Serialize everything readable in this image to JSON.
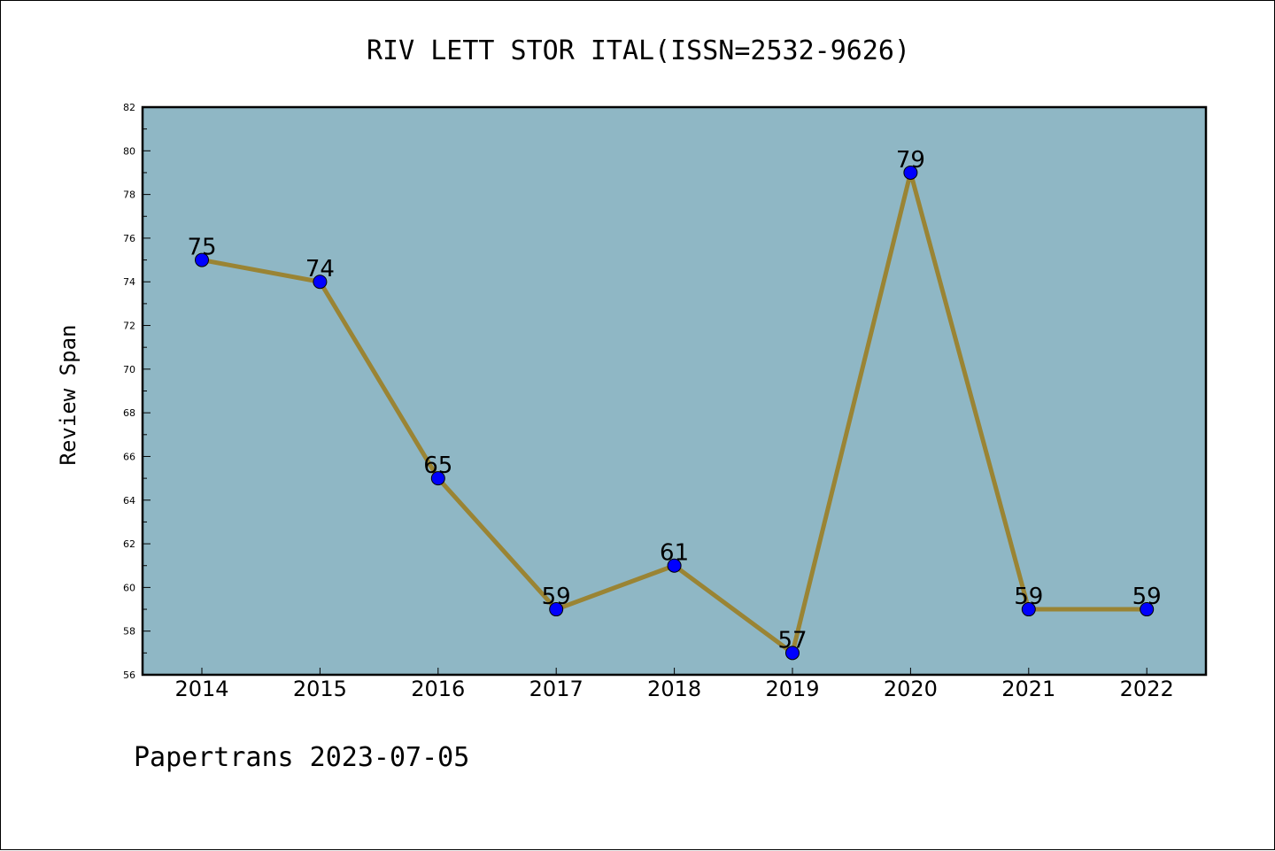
{
  "title": "RIV LETT STOR ITAL(ISSN=2532-9626)",
  "footer": "Papertrans 2023-07-05",
  "colors": {
    "plot_background": "#8fb7c5",
    "line": "#9a8434",
    "marker": "#0000ff",
    "axis": "#000000"
  },
  "chart_data": {
    "type": "line",
    "title": "RIV LETT STOR ITAL(ISSN=2532-9626)",
    "xlabel": "",
    "ylabel": "Review Span",
    "categories": [
      "2014",
      "2015",
      "2016",
      "2017",
      "2018",
      "2019",
      "2020",
      "2021",
      "2022"
    ],
    "series": [
      {
        "values": [
          75,
          74,
          65,
          59,
          61,
          57,
          79,
          59,
          59
        ]
      }
    ],
    "ylim": [
      56,
      82
    ],
    "yticks": [
      56,
      58,
      60,
      62,
      64,
      66,
      68,
      70,
      72,
      74,
      76,
      78,
      80,
      82
    ],
    "data_labels": true,
    "grid": false,
    "legend": "none"
  }
}
